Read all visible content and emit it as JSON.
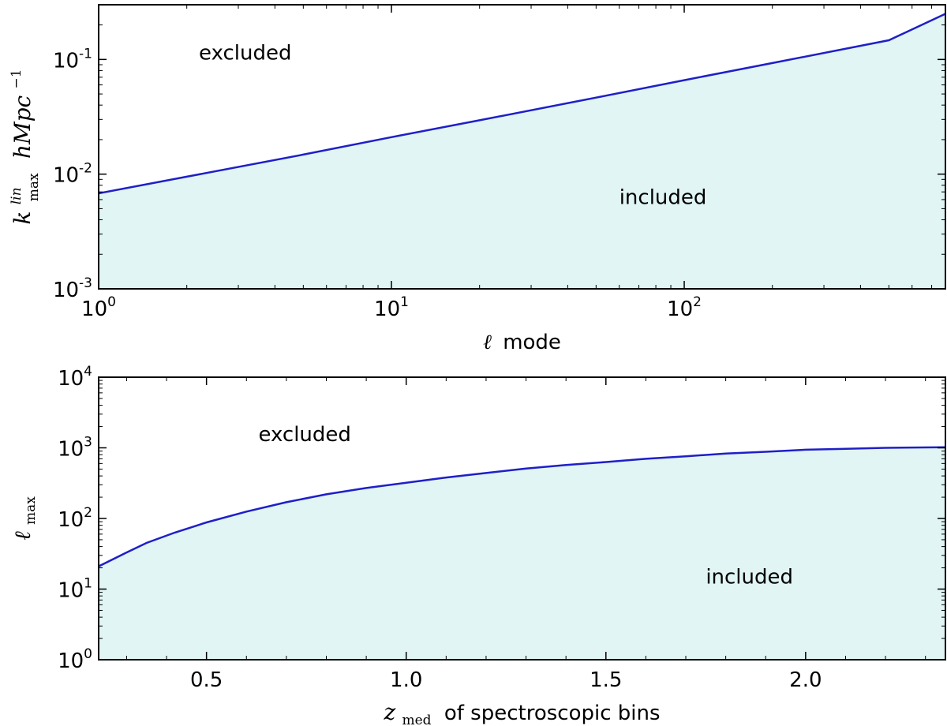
{
  "colors": {
    "line": "#1f1fc8",
    "fill": "#e0f5f4",
    "axes": "#000000"
  },
  "chart_data": [
    {
      "type": "area",
      "xscale": "log",
      "yscale": "log",
      "xlim": [
        1,
        780
      ],
      "ylim": [
        0.001,
        0.3
      ],
      "xlabel_symbol": "ℓ",
      "xlabel_text": "mode",
      "ylabel_base": "k",
      "ylabel_sup": "lin",
      "ylabel_sub": "max",
      "ylabel_unit": "hMpc",
      "ylabel_unit_exp": "−1",
      "xticks": [
        {
          "value": 1,
          "base": "10",
          "exp": "0"
        },
        {
          "value": 10,
          "base": "10",
          "exp": "1"
        },
        {
          "value": 100,
          "base": "10",
          "exp": "2"
        }
      ],
      "yticks": [
        {
          "value": 0.001,
          "base": "10",
          "exp": "-3"
        },
        {
          "value": 0.01,
          "base": "10",
          "exp": "-2"
        },
        {
          "value": 0.1,
          "base": "10",
          "exp": "-1"
        }
      ],
      "series": [
        {
          "name": "k_max",
          "x": [
            1,
            2,
            5,
            10,
            20,
            50,
            100,
            200,
            500,
            780
          ],
          "y": [
            0.0068,
            0.0095,
            0.0148,
            0.021,
            0.0295,
            0.0465,
            0.066,
            0.093,
            0.147,
            0.25
          ]
        }
      ],
      "annotations": [
        {
          "text": "excluded",
          "x": 2.2,
          "y": 0.1
        },
        {
          "text": "included",
          "x": 60,
          "y": 0.0055
        }
      ]
    },
    {
      "type": "area",
      "xscale": "linear",
      "yscale": "log",
      "xlim": [
        0.23,
        2.35
      ],
      "ylim": [
        1,
        10000
      ],
      "xlabel_symbol": "z",
      "xlabel_sub": "med",
      "xlabel_text": "of spectroscopic bins",
      "ylabel_base": "ℓ",
      "ylabel_sub": "max",
      "xticks": [
        {
          "value": 0.5,
          "label": "0.5"
        },
        {
          "value": 1.0,
          "label": "1.0"
        },
        {
          "value": 1.5,
          "label": "1.5"
        },
        {
          "value": 2.0,
          "label": "2.0"
        }
      ],
      "yticks": [
        {
          "value": 1,
          "base": "10",
          "exp": "0"
        },
        {
          "value": 10,
          "base": "10",
          "exp": "1"
        },
        {
          "value": 100,
          "base": "10",
          "exp": "2"
        },
        {
          "value": 1000,
          "base": "10",
          "exp": "3"
        },
        {
          "value": 10000,
          "base": "10",
          "exp": "4"
        }
      ],
      "series": [
        {
          "name": "l_max",
          "x": [
            0.23,
            0.3,
            0.35,
            0.42,
            0.5,
            0.6,
            0.7,
            0.8,
            0.9,
            1.0,
            1.1,
            1.2,
            1.3,
            1.4,
            1.5,
            1.6,
            1.7,
            1.8,
            1.9,
            2.0,
            2.1,
            2.2,
            2.35
          ],
          "y": [
            21,
            33,
            45,
            63,
            88,
            125,
            170,
            220,
            270,
            320,
            380,
            440,
            510,
            570,
            630,
            700,
            760,
            830,
            880,
            940,
            970,
            1000,
            1020
          ]
        }
      ],
      "annotations": [
        {
          "text": "excluded",
          "x": 0.63,
          "y": 1250
        },
        {
          "text": "included",
          "x": 1.75,
          "y": 12
        }
      ]
    }
  ]
}
